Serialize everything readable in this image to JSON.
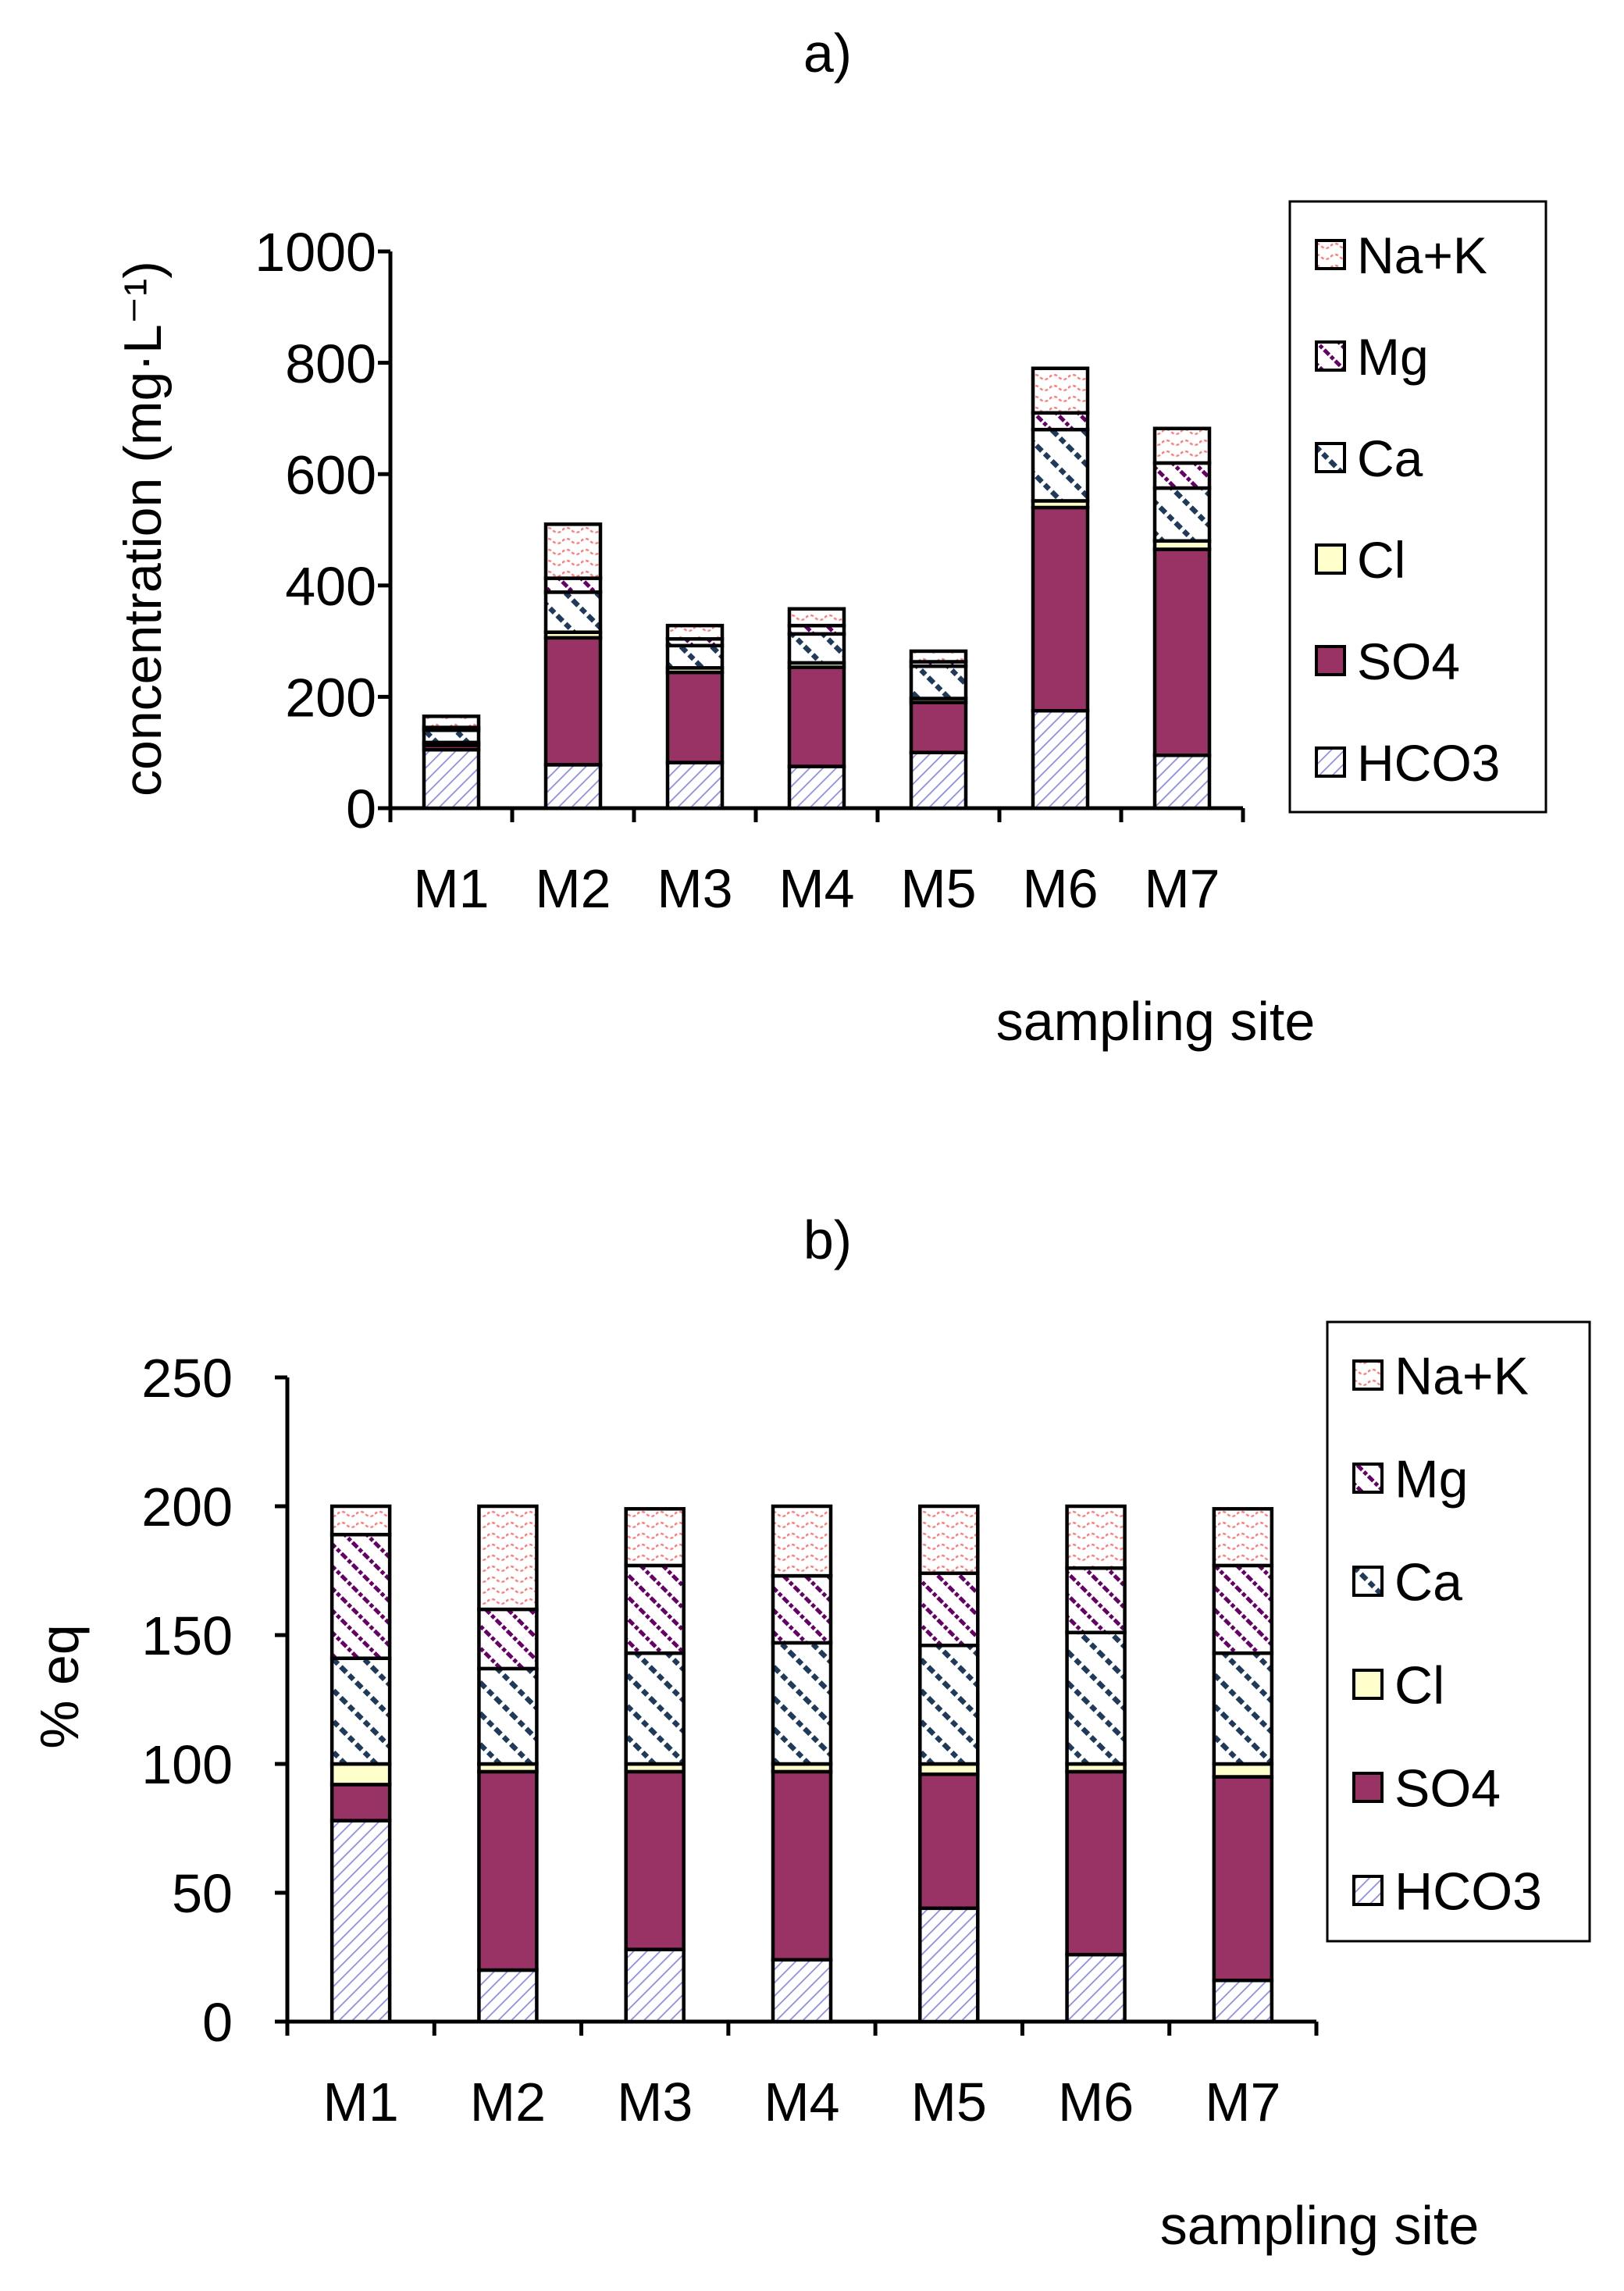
{
  "chart_data": [
    {
      "type": "bar",
      "stacked": true,
      "title": "a)",
      "xlabel": "sampling site",
      "ylabel": "concentration (mg·L⁻¹)",
      "ylim": [
        0,
        1000
      ],
      "yticks": [
        "0",
        "200",
        "400",
        "600",
        "800",
        "1000"
      ],
      "categories": [
        "M1",
        "M2",
        "M3",
        "M4",
        "M5",
        "M6",
        "M7"
      ],
      "legend_position": "right",
      "series": [
        {
          "name": "HCO3",
          "key": "hco3",
          "values": [
            105,
            78,
            82,
            75,
            100,
            175,
            95
          ]
        },
        {
          "name": "SO4",
          "key": "so4",
          "values": [
            8,
            228,
            162,
            178,
            90,
            365,
            370
          ]
        },
        {
          "name": "Cl",
          "key": "cl",
          "values": [
            5,
            10,
            8,
            8,
            7,
            12,
            15
          ]
        },
        {
          "name": "Ca",
          "key": "ca",
          "values": [
            22,
            72,
            40,
            52,
            58,
            128,
            95
          ]
        },
        {
          "name": "Mg",
          "key": "mg",
          "values": [
            5,
            25,
            12,
            15,
            8,
            30,
            45
          ]
        },
        {
          "name": "Na+K",
          "key": "nak",
          "values": [
            20,
            97,
            24,
            30,
            19,
            80,
            62
          ]
        }
      ]
    },
    {
      "type": "bar",
      "stacked": true,
      "title": "b)",
      "xlabel": "sampling site",
      "ylabel": "% eq",
      "ylim": [
        0,
        250
      ],
      "yticks": [
        "0",
        "50",
        "100",
        "150",
        "200",
        "250"
      ],
      "categories": [
        "M1",
        "M2",
        "M3",
        "M4",
        "M5",
        "M6",
        "M7"
      ],
      "legend_position": "right",
      "series": [
        {
          "name": "HCO3",
          "key": "hco3",
          "values": [
            78,
            20,
            28,
            24,
            44,
            26,
            16
          ]
        },
        {
          "name": "SO4",
          "key": "so4",
          "values": [
            14,
            77,
            69,
            73,
            52,
            71,
            79
          ]
        },
        {
          "name": "Cl",
          "key": "cl",
          "values": [
            8,
            3,
            3,
            3,
            4,
            3,
            5
          ]
        },
        {
          "name": "Ca",
          "key": "ca",
          "values": [
            41,
            37,
            43,
            47,
            46,
            51,
            43
          ]
        },
        {
          "name": "Mg",
          "key": "mg",
          "values": [
            48,
            23,
            34,
            26,
            28,
            25,
            34
          ]
        },
        {
          "name": "Na+K",
          "key": "nak",
          "values": [
            11,
            40,
            22,
            27,
            26,
            24,
            22
          ]
        }
      ]
    }
  ],
  "colors": {
    "hco3_stripe": "#8c8ce6",
    "so4_fill": "#993366",
    "cl_fill": "#ffffcc",
    "ca_stripe": "#1f3a5a",
    "mg_stripe": "#660066",
    "nak_stripe": "#ff8080",
    "axis": "#000000"
  }
}
